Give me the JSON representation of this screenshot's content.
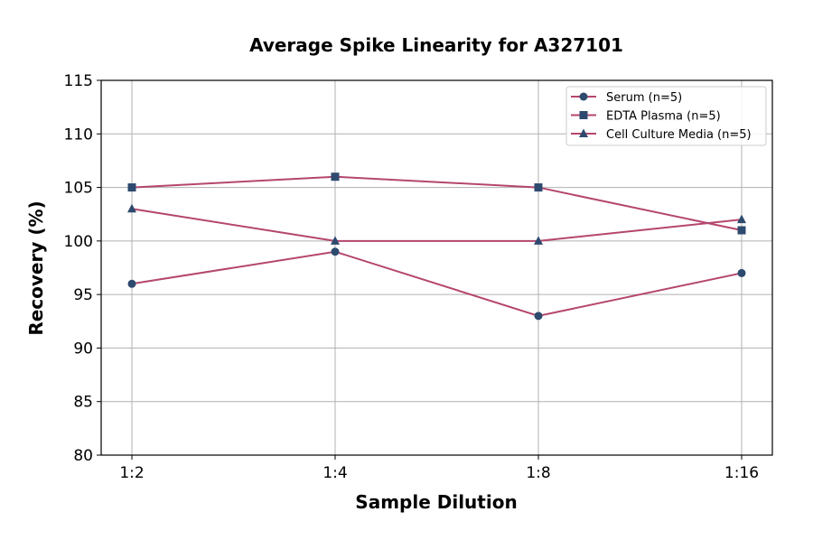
{
  "chart_data": {
    "type": "line",
    "title": "Average Spike Linearity for A327101",
    "xlabel": "Sample Dilution",
    "ylabel": "Recovery (%)",
    "categories": [
      "1:2",
      "1:4",
      "1:8",
      "1:16"
    ],
    "ylim": [
      80,
      115
    ],
    "yticks": [
      80,
      85,
      90,
      95,
      100,
      105,
      110,
      115
    ],
    "grid": true,
    "legend_position": "top-right",
    "line_color": "#b5466f",
    "marker_color": "#2e4a6e",
    "series": [
      {
        "name": "Serum (n=5)",
        "marker": "circle",
        "values": [
          96,
          99,
          93,
          97
        ]
      },
      {
        "name": "EDTA Plasma (n=5)",
        "marker": "square",
        "values": [
          105,
          106,
          105,
          101
        ]
      },
      {
        "name": "Cell Culture Media (n=5)",
        "marker": "triangle",
        "values": [
          103,
          100,
          100,
          102
        ]
      }
    ]
  }
}
